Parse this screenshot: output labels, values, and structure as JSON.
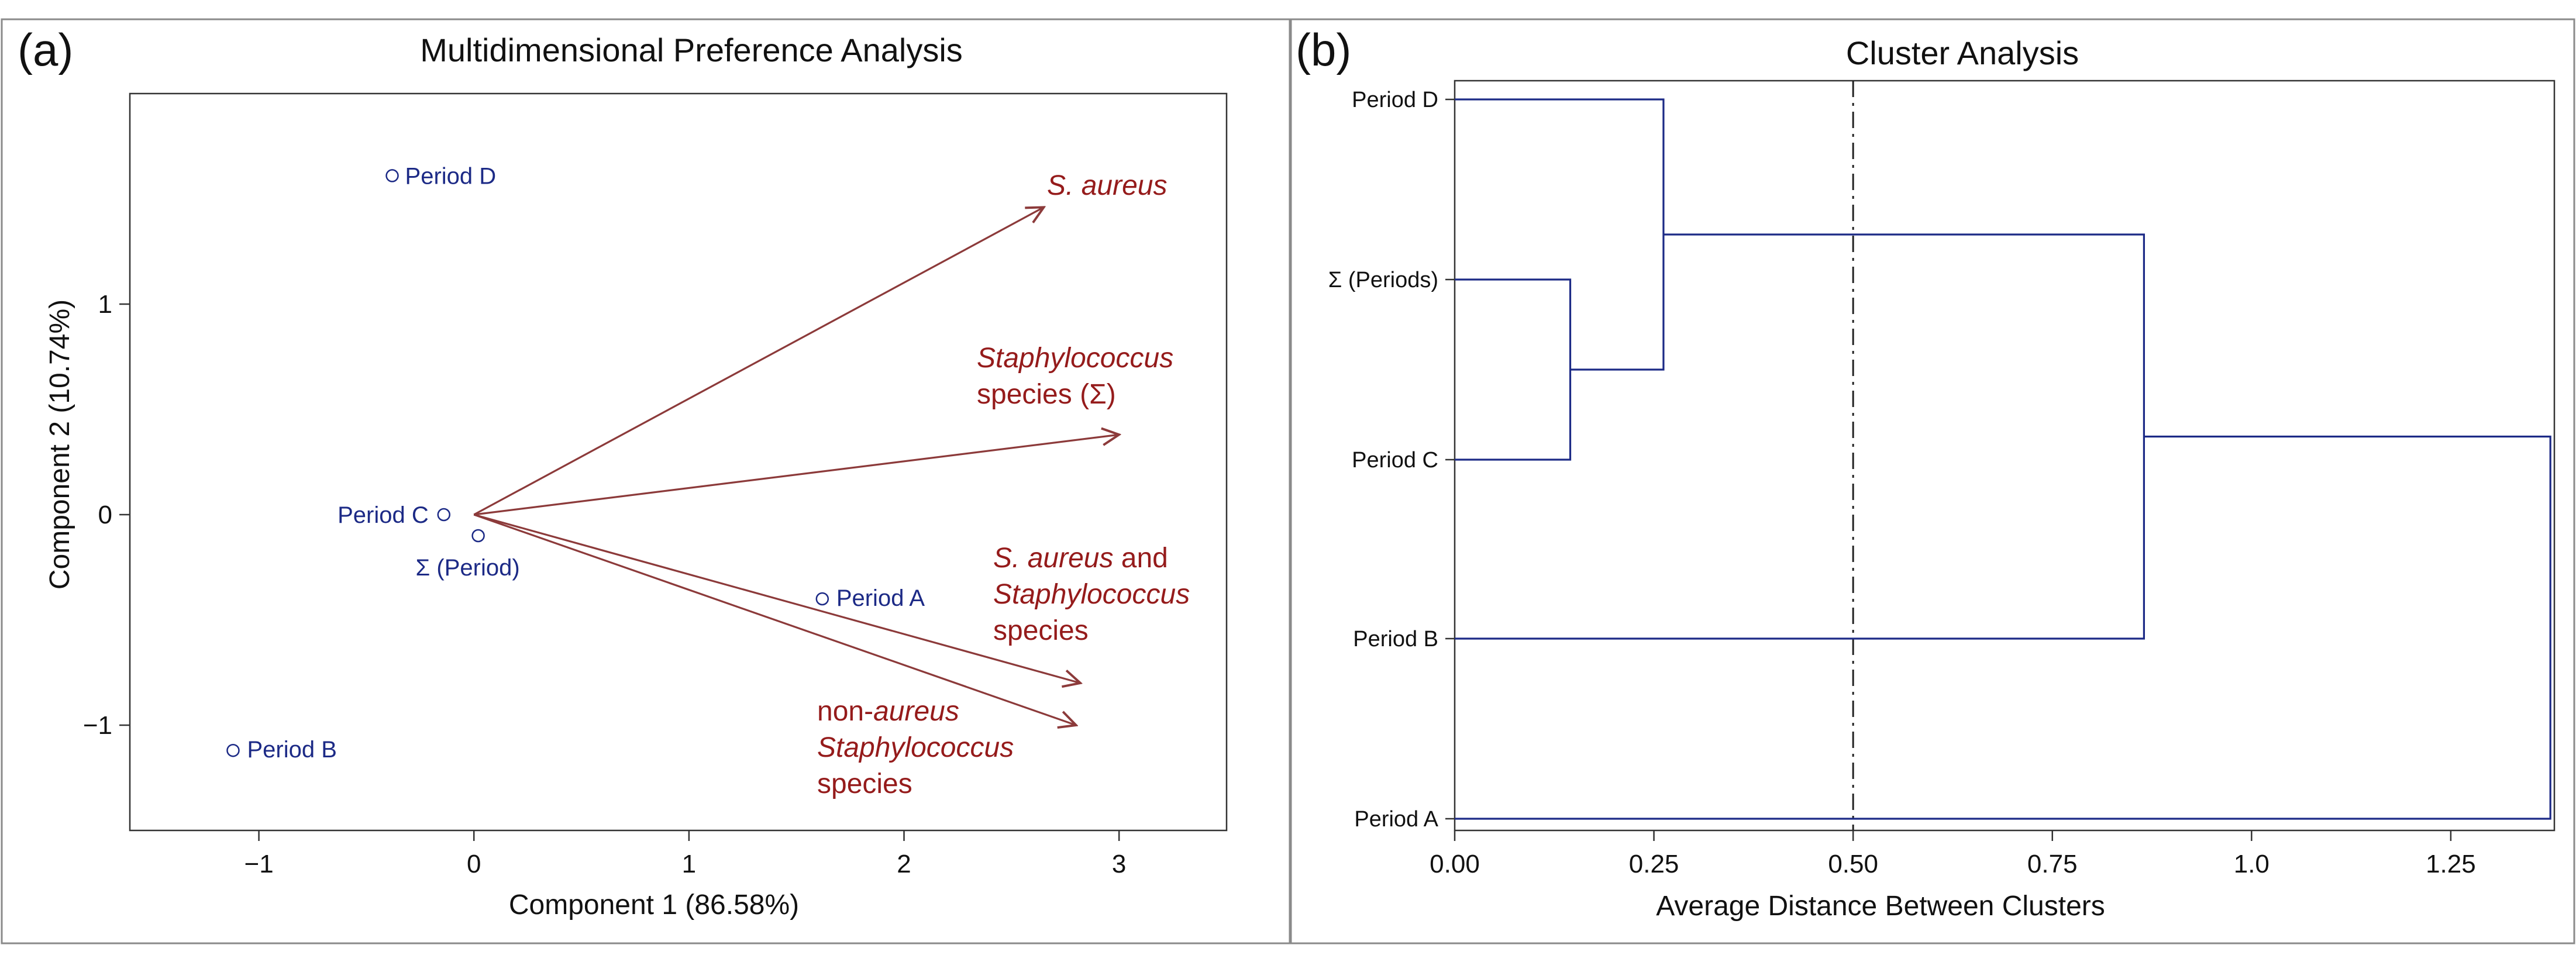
{
  "chart_data": [
    {
      "panel_label": "(a)",
      "type": "scatter",
      "title": "Multidimensional Preference Analysis",
      "xlabel": "Component 1 (86.58%)",
      "ylabel": "Component 2 (10.74%)",
      "xlim": [
        -1.6,
        3.5
      ],
      "ylim": [
        -1.5,
        2.0
      ],
      "xticks": [
        -1,
        0,
        1,
        2,
        3
      ],
      "yticks": [
        -1,
        0,
        1
      ],
      "xtick_labels": [
        "−1",
        "0",
        "1",
        "2",
        "3"
      ],
      "ytick_labels": [
        "−1",
        "0",
        "1"
      ],
      "points": [
        {
          "label": "Period D",
          "x": -0.38,
          "y": 1.61
        },
        {
          "label": "Period C",
          "x": -0.14,
          "y": 0.0
        },
        {
          "label": "Σ (Period)",
          "x": 0.02,
          "y": -0.1
        },
        {
          "label": "Period A",
          "x": 1.62,
          "y": -0.4
        },
        {
          "label": "Period B",
          "x": -1.12,
          "y": -1.12
        }
      ],
      "vectors": [
        {
          "lines": [
            {
              "parts": [
                {
                  "text": "S. aureus",
                  "italic": true
                }
              ]
            }
          ],
          "x": 2.65,
          "y": 1.46
        },
        {
          "lines": [
            {
              "parts": [
                {
                  "text": "Staphylococcus",
                  "italic": true
                }
              ]
            },
            {
              "parts": [
                {
                  "text": "species (Σ)",
                  "italic": false
                }
              ]
            }
          ],
          "x": 3.0,
          "y": 0.38
        },
        {
          "lines": [
            {
              "parts": [
                {
                  "text": "S. aureus",
                  "italic": true
                },
                {
                  "text": " and",
                  "italic": false
                }
              ]
            },
            {
              "parts": [
                {
                  "text": "Staphylococcus",
                  "italic": true
                }
              ]
            },
            {
              "parts": [
                {
                  "text": "species",
                  "italic": false
                }
              ]
            }
          ],
          "x": 2.82,
          "y": -0.8
        },
        {
          "lines": [
            {
              "parts": [
                {
                  "text": "non-",
                  "italic": false
                },
                {
                  "text": "aureus",
                  "italic": true
                }
              ]
            },
            {
              "parts": [
                {
                  "text": "Staphylococcus",
                  "italic": true
                }
              ]
            },
            {
              "parts": [
                {
                  "text": "species",
                  "italic": false
                }
              ]
            }
          ],
          "x": 2.8,
          "y": -1.0
        }
      ],
      "colors": {
        "points": "#1c2a86",
        "vectors": "#8c3a3a",
        "vector_labels": "#951b1b"
      }
    },
    {
      "panel_label": "(b)",
      "type": "dendrogram",
      "title": "Cluster Analysis",
      "xlabel": "Average Distance Between Clusters",
      "xlim": [
        0,
        1.38
      ],
      "xticks": [
        0.0,
        0.25,
        0.5,
        0.75,
        1.0,
        1.25
      ],
      "xtick_labels": [
        "0.00",
        "0.25",
        "0.50",
        "0.75",
        "1.0",
        "1.25"
      ],
      "leaves": [
        "Period D",
        "Σ (Periods)",
        "Period C",
        "Period B",
        "Period A"
      ],
      "merges": [
        {
          "a": "Σ (Periods)",
          "b": "Period C",
          "height": 0.145
        },
        {
          "a": "Period D",
          "b": "m0",
          "height": 0.262
        },
        {
          "a": "Period B",
          "b": "m1",
          "height": 0.865
        },
        {
          "a": "Period A",
          "b": "m2",
          "height": 1.375
        }
      ],
      "cutoff": 0.5,
      "colors": {
        "lines": "#1c2a86",
        "cutoff": "#222222"
      }
    }
  ]
}
